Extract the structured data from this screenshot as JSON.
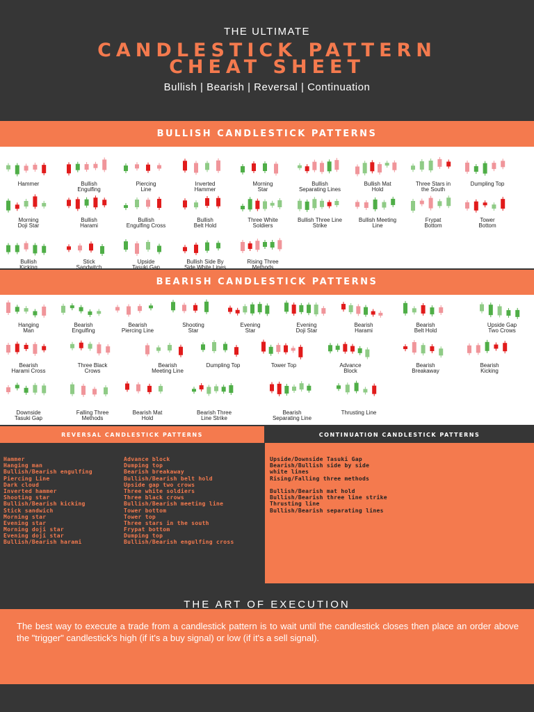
{
  "header": {
    "pretitle": "THE ULTIMATE",
    "title_line1": "CANDLESTICK PATTERN",
    "title_line2": "CHEAT SHEET",
    "subtitle": "Bullish | Bearish | Reversal | Continuation"
  },
  "colors": {
    "accent": "#f47a4e",
    "dark": "#363636",
    "bull_candle": "#8fcb86",
    "bull_candle_dark": "#4fae47",
    "bear_candle": "#e11b1b",
    "bear_candle_light": "#f0959a"
  },
  "bullish": {
    "heading": "BULLISH CANDLESTICK PATTERNS",
    "rows": [
      [
        {
          "l1": "Hammer",
          "l2": ""
        },
        {
          "l1": "Bullish",
          "l2": "Engulfing"
        },
        {
          "l1": "Piercing",
          "l2": "Line"
        },
        {
          "l1": "Inverted",
          "l2": "Hammer"
        },
        {
          "l1": "Morning",
          "l2": "Star"
        },
        {
          "l1": "Bullish",
          "l2": "Separating Lines"
        },
        {
          "l1": "Bullish Mat",
          "l2": "Hold"
        },
        {
          "l1": "Three Stars in",
          "l2": "the South"
        },
        {
          "l1": "Dumpling Top",
          "l2": ""
        }
      ],
      [
        {
          "l1": "Morning",
          "l2": "Doji Star"
        },
        {
          "l1": "Bullish",
          "l2": "Harami"
        },
        {
          "l1": "Bullish",
          "l2": "Engulfing Cross"
        },
        {
          "l1": "Bullish",
          "l2": "Belt Hold"
        },
        {
          "l1": "Three White",
          "l2": "Soldiers"
        },
        {
          "l1": "Bullish Three Line",
          "l2": "Strike"
        },
        {
          "l1": "Bullish Meeting",
          "l2": "Line"
        },
        {
          "l1": "Frypat",
          "l2": "Bottom"
        },
        {
          "l1": "Tower",
          "l2": "Bottom"
        }
      ],
      [
        {
          "l1": "Bullish",
          "l2": "Kicking"
        },
        {
          "l1": "Stick",
          "l2": "Sandwitch"
        },
        {
          "l1": "Upside",
          "l2": "Tasuki Gap"
        },
        {
          "l1": "Bullish Side By",
          "l2": "Side White Lines"
        },
        {
          "l1": "Rising Three",
          "l2": "Methods"
        }
      ]
    ]
  },
  "bearish": {
    "heading": "BEARISH CANDLESTICK PATTERNS",
    "rows": [
      [
        {
          "l1": "Hanging",
          "l2": "Man"
        },
        {
          "l1": "Bearish",
          "l2": "Engulfing"
        },
        {
          "l1": "Bearish",
          "l2": "Piercing Line"
        },
        {
          "l1": "Shooting",
          "l2": "Star"
        },
        {
          "l1": "Evening",
          "l2": "Star"
        },
        {
          "l1": "Evening",
          "l2": "Doji Star"
        },
        {
          "l1": "Bearish",
          "l2": "Harami"
        },
        {
          "l1": "Bearish",
          "l2": "Belt Hold"
        },
        {
          "l1": "Upside Gap",
          "l2": "Two Crows"
        }
      ],
      [
        {
          "l1": "Bearish",
          "l2": "Harami Cross"
        },
        {
          "l1": "Three Black",
          "l2": "Crows"
        },
        {
          "l1": "Bearish",
          "l2": "Meeting Line"
        },
        {
          "l1": "Dumpling Top",
          "l2": ""
        },
        {
          "l1": "Tower Top",
          "l2": ""
        },
        {
          "l1": "Advance",
          "l2": "Block"
        },
        {
          "l1": "Bearish",
          "l2": "Breakaway"
        },
        {
          "l1": "Bearish",
          "l2": "Kicking"
        }
      ],
      [
        {
          "l1": "Downside",
          "l2": "Tasuki Gap"
        },
        {
          "l1": "Falling Three",
          "l2": "Methods"
        },
        {
          "l1": "Bearish Mat",
          "l2": "Hold"
        },
        {
          "l1": "Bearish Three",
          "l2": "Line Strike"
        },
        {
          "l1": "Bearish",
          "l2": "Separating Line"
        },
        {
          "l1": "Thrusting Line",
          "l2": ""
        }
      ]
    ]
  },
  "reversal": {
    "heading": "REVERSAL CANDLESTICK PATTERNS",
    "col1": [
      "Hammer",
      "Hanging man",
      "Bullish/Bearish engulfing",
      "Piercing Line",
      "Dark cloud",
      "Inverted hammer",
      "Shooting star",
      "Bullish/Bearish kicking",
      "Stick sandwich",
      "Morning star",
      "Evening star",
      "Morning doji star",
      "Evening doji star",
      "Bullish/Bearish harami"
    ],
    "col2": [
      "Advance block",
      "Dumping top",
      "Bearish breakaway",
      "Bullish/Bearish belt hold",
      "Upside gap two crows",
      "Three white soldiers",
      "Three black crows",
      "Bullish/Bearish meeting line",
      "Tower bottom",
      "Tower top",
      "Three stars in the south",
      "Frypat bottom",
      "Dumping top",
      "Bullish/Bearish engulfing cross"
    ]
  },
  "continuation": {
    "heading": "CONTINUATION CANDLESTICK PATTERNS",
    "items": [
      "Upside/Downside Tasuki Gap",
      "Bearish/Bullish side by side",
      "white lines",
      "Rising/Falling three methods",
      "",
      "Bullish/Bearish mat hold",
      "Bullish/Bearish three line strike",
      "Thrusting line",
      "Bullish/Bearish separating lines"
    ]
  },
  "execution": {
    "heading": "THE ART OF EXECUTION",
    "text": "The best way to execute a trade from a candlestick pattern is to wait until the candlestick closes then place an order above the \"trigger\" candlestick's high (if it's a buy signal) or low (if it's a sell signal)."
  }
}
